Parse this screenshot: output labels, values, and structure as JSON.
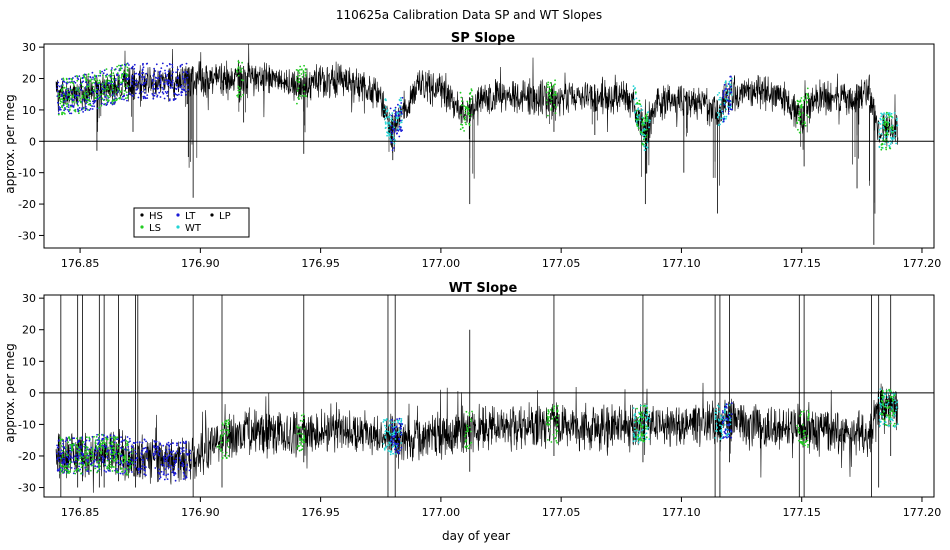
{
  "figure": {
    "title": "110625a   Calibration Data SP and WT Slopes"
  },
  "colors": {
    "HS": "#000000",
    "LS": "#22cc22",
    "LT": "#1a1ad6",
    "WT": "#22d4d4",
    "LP": "#000000",
    "frame": "#000000",
    "zero_line": "#000000"
  },
  "legend": {
    "entries": [
      {
        "key": "HS",
        "label": "HS"
      },
      {
        "key": "LS",
        "label": "LS"
      },
      {
        "key": "LT",
        "label": "LT"
      },
      {
        "key": "WT",
        "label": "WT"
      },
      {
        "key": "LP",
        "label": "LP"
      }
    ]
  },
  "chart_data": [
    {
      "type": "line",
      "title": "SP Slope",
      "xlabel": "",
      "ylabel": "approx. per meg",
      "xlim": [
        176.835,
        177.205
      ],
      "ylim": [
        -34,
        31
      ],
      "xticks": [
        "176.85",
        "176.90",
        "176.95",
        "177.00",
        "177.05",
        "177.10",
        "177.15",
        "177.20"
      ],
      "yticks": [
        "-30",
        "-20",
        "-10",
        "0",
        "10",
        "20",
        "30"
      ],
      "reference_line_y": 0,
      "legend_placement": "bottom-left",
      "x_range": [
        176.84,
        177.19
      ],
      "trend": [
        [
          176.84,
          14
        ],
        [
          176.85,
          15
        ],
        [
          176.86,
          17
        ],
        [
          176.87,
          19
        ],
        [
          176.88,
          19
        ],
        [
          176.89,
          19
        ],
        [
          176.9,
          20
        ],
        [
          176.91,
          20
        ],
        [
          176.92,
          20
        ],
        [
          176.93,
          20
        ],
        [
          176.94,
          18
        ],
        [
          176.95,
          19
        ],
        [
          176.96,
          19
        ],
        [
          176.97,
          17
        ],
        [
          176.975,
          13
        ],
        [
          176.98,
          3
        ],
        [
          176.985,
          11
        ],
        [
          176.99,
          17
        ],
        [
          177.0,
          17
        ],
        [
          177.01,
          8
        ],
        [
          177.015,
          13
        ],
        [
          177.02,
          14
        ],
        [
          177.03,
          14
        ],
        [
          177.04,
          14
        ],
        [
          177.05,
          14
        ],
        [
          177.06,
          14
        ],
        [
          177.07,
          14
        ],
        [
          177.08,
          13
        ],
        [
          177.085,
          2
        ],
        [
          177.09,
          12
        ],
        [
          177.1,
          13
        ],
        [
          177.11,
          12
        ],
        [
          177.115,
          9
        ],
        [
          177.12,
          15
        ],
        [
          177.13,
          16
        ],
        [
          177.14,
          15
        ],
        [
          177.15,
          8
        ],
        [
          177.155,
          14
        ],
        [
          177.16,
          14
        ],
        [
          177.17,
          13
        ],
        [
          177.178,
          16
        ],
        [
          177.182,
          3
        ],
        [
          177.19,
          4
        ]
      ],
      "dips": [
        {
          "x": 176.857,
          "depth": -3
        },
        {
          "x": 176.872,
          "depth": 3
        },
        {
          "x": 176.895,
          "depth": -5
        },
        {
          "x": 176.897,
          "depth": -18
        },
        {
          "x": 176.918,
          "depth": 6
        },
        {
          "x": 176.943,
          "depth": -4
        },
        {
          "x": 176.98,
          "depth": -6
        },
        {
          "x": 177.012,
          "depth": -20
        },
        {
          "x": 177.047,
          "depth": 3
        },
        {
          "x": 177.064,
          "depth": 2
        },
        {
          "x": 177.085,
          "depth": -20
        },
        {
          "x": 177.101,
          "depth": -10
        },
        {
          "x": 177.115,
          "depth": -23
        },
        {
          "x": 177.151,
          "depth": -8
        },
        {
          "x": 177.173,
          "depth": -15
        },
        {
          "x": 177.18,
          "depth": -33
        }
      ],
      "calibration_segments": [
        {
          "x0": 176.84,
          "x1": 176.878,
          "key": "LT"
        },
        {
          "x0": 176.841,
          "x1": 176.87,
          "key": "LS"
        },
        {
          "x0": 176.88,
          "x1": 176.895,
          "key": "LT"
        },
        {
          "x0": 176.915,
          "x1": 176.918,
          "key": "LS"
        },
        {
          "x0": 176.94,
          "x1": 176.944,
          "key": "LS"
        },
        {
          "x0": 176.976,
          "x1": 176.984,
          "key": "WT"
        },
        {
          "x0": 176.979,
          "x1": 176.984,
          "key": "LT"
        },
        {
          "x0": 177.008,
          "x1": 177.013,
          "key": "LS"
        },
        {
          "x0": 177.044,
          "x1": 177.048,
          "key": "LS"
        },
        {
          "x0": 177.08,
          "x1": 177.087,
          "key": "WT"
        },
        {
          "x0": 177.081,
          "x1": 177.086,
          "key": "LS"
        },
        {
          "x0": 177.115,
          "x1": 177.121,
          "key": "WT"
        },
        {
          "x0": 177.117,
          "x1": 177.121,
          "key": "LT"
        },
        {
          "x0": 177.148,
          "x1": 177.153,
          "key": "LS"
        },
        {
          "x0": 177.182,
          "x1": 177.19,
          "key": "WT"
        },
        {
          "x0": 177.183,
          "x1": 177.188,
          "key": "LS"
        }
      ]
    },
    {
      "type": "line",
      "title": "WT Slope",
      "xlabel": "day of year",
      "ylabel": "approx. per meg",
      "xlim": [
        176.835,
        177.205
      ],
      "ylim": [
        -33,
        31
      ],
      "xticks": [
        "176.85",
        "176.90",
        "176.95",
        "177.00",
        "177.05",
        "177.10",
        "177.15",
        "177.20"
      ],
      "yticks": [
        "-30",
        "-20",
        "-10",
        "0",
        "10",
        "20",
        "30"
      ],
      "reference_line_y": 0,
      "x_range": [
        176.84,
        177.19
      ],
      "trend": [
        [
          176.84,
          -20
        ],
        [
          176.85,
          -20
        ],
        [
          176.86,
          -19
        ],
        [
          176.87,
          -20
        ],
        [
          176.88,
          -21
        ],
        [
          176.89,
          -22
        ],
        [
          176.9,
          -20
        ],
        [
          176.91,
          -15
        ],
        [
          176.92,
          -12
        ],
        [
          176.93,
          -13
        ],
        [
          176.94,
          -13
        ],
        [
          176.95,
          -12
        ],
        [
          176.96,
          -12
        ],
        [
          176.97,
          -13
        ],
        [
          176.98,
          -14
        ],
        [
          176.99,
          -14
        ],
        [
          177.0,
          -13
        ],
        [
          177.01,
          -12
        ],
        [
          177.02,
          -11
        ],
        [
          177.03,
          -11
        ],
        [
          177.04,
          -10
        ],
        [
          177.05,
          -10
        ],
        [
          177.06,
          -11
        ],
        [
          177.07,
          -11
        ],
        [
          177.08,
          -10
        ],
        [
          177.09,
          -10
        ],
        [
          177.1,
          -10
        ],
        [
          177.11,
          -10
        ],
        [
          177.12,
          -9
        ],
        [
          177.13,
          -11
        ],
        [
          177.14,
          -11
        ],
        [
          177.15,
          -11
        ],
        [
          177.16,
          -12
        ],
        [
          177.17,
          -13
        ],
        [
          177.178,
          -13
        ],
        [
          177.183,
          -4
        ],
        [
          177.19,
          -6
        ]
      ],
      "spikes": [
        {
          "x": 176.842,
          "top": 31,
          "bottom": -33
        },
        {
          "x": 176.849,
          "top": 31,
          "bottom": -30
        },
        {
          "x": 176.851,
          "top": 31,
          "bottom": -28
        },
        {
          "x": 176.858,
          "top": 31,
          "bottom": -30
        },
        {
          "x": 176.86,
          "top": 31,
          "bottom": -30
        },
        {
          "x": 176.866,
          "top": 31,
          "bottom": -28
        },
        {
          "x": 176.873,
          "top": 31,
          "bottom": -30
        },
        {
          "x": 176.874,
          "top": 31,
          "bottom": -26
        },
        {
          "x": 176.897,
          "top": 31,
          "bottom": -33
        },
        {
          "x": 176.909,
          "top": 31,
          "bottom": -30
        },
        {
          "x": 176.943,
          "top": 31,
          "bottom": -22
        },
        {
          "x": 176.978,
          "top": 31,
          "bottom": -33
        },
        {
          "x": 176.981,
          "top": 31,
          "bottom": -33
        },
        {
          "x": 177.012,
          "top": 20,
          "bottom": -25
        },
        {
          "x": 177.047,
          "top": 31,
          "bottom": -20
        },
        {
          "x": 177.084,
          "top": 31,
          "bottom": -22
        },
        {
          "x": 177.114,
          "top": 31,
          "bottom": -33
        },
        {
          "x": 177.116,
          "top": 31,
          "bottom": -33
        },
        {
          "x": 177.12,
          "top": 31,
          "bottom": -22
        },
        {
          "x": 177.149,
          "top": 31,
          "bottom": -33
        },
        {
          "x": 177.151,
          "top": 31,
          "bottom": -33
        },
        {
          "x": 177.179,
          "top": 31,
          "bottom": -33
        },
        {
          "x": 177.182,
          "top": 31,
          "bottom": -30
        },
        {
          "x": 177.187,
          "top": 31,
          "bottom": -20
        }
      ],
      "calibration_segments": [
        {
          "x0": 176.84,
          "x1": 176.878,
          "key": "LT"
        },
        {
          "x0": 176.841,
          "x1": 176.872,
          "key": "LS"
        },
        {
          "x0": 176.88,
          "x1": 176.896,
          "key": "LT"
        },
        {
          "x0": 176.907,
          "x1": 176.912,
          "key": "LS"
        },
        {
          "x0": 176.94,
          "x1": 176.944,
          "key": "LS"
        },
        {
          "x0": 176.976,
          "x1": 176.984,
          "key": "WT"
        },
        {
          "x0": 176.979,
          "x1": 176.984,
          "key": "LT"
        },
        {
          "x0": 177.01,
          "x1": 177.013,
          "key": "LS"
        },
        {
          "x0": 177.044,
          "x1": 177.049,
          "key": "LS"
        },
        {
          "x0": 177.08,
          "x1": 177.087,
          "key": "WT"
        },
        {
          "x0": 177.081,
          "x1": 177.086,
          "key": "LS"
        },
        {
          "x0": 177.114,
          "x1": 177.121,
          "key": "WT"
        },
        {
          "x0": 177.117,
          "x1": 177.121,
          "key": "LT"
        },
        {
          "x0": 177.148,
          "x1": 177.153,
          "key": "LS"
        },
        {
          "x0": 177.182,
          "x1": 177.19,
          "key": "WT"
        },
        {
          "x0": 177.183,
          "x1": 177.189,
          "key": "LS"
        }
      ]
    }
  ]
}
